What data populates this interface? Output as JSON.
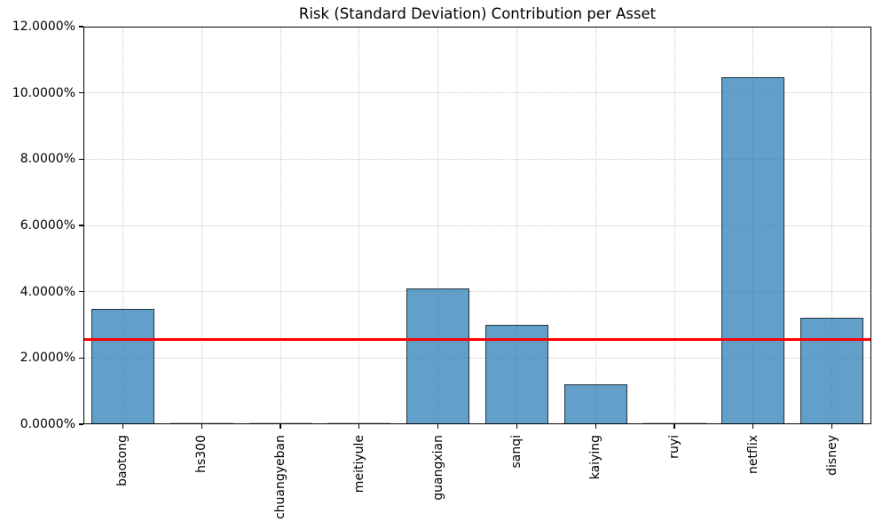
{
  "chart_data": {
    "type": "bar",
    "title": "Risk (Standard Deviation) Contribution per Asset",
    "xlabel": "",
    "ylabel": "",
    "categories": [
      "baotong",
      "hs300",
      "chuangyeban",
      "meitiyule",
      "guangxian",
      "sanqi",
      "kaiying",
      "ruyi",
      "netflix",
      "disney"
    ],
    "values": [
      3.47,
      0.0,
      0.0,
      0.0,
      4.11,
      3.0,
      1.2,
      0.0,
      10.46,
      3.22
    ],
    "value_unit": "%",
    "ylim": [
      0,
      12
    ],
    "ytick_step": 2,
    "ytick_labels": [
      "0.0000%",
      "2.0000%",
      "4.0000%",
      "6.0000%",
      "8.0000%",
      "10.0000%",
      "12.0000%"
    ],
    "x_tick_rotation": 90,
    "grid": true,
    "legend": "none",
    "mean_line": {
      "value": 2.55,
      "color": "#ff0000"
    },
    "colors": {
      "bar_fill": "rgba(31,119,180,0.7)",
      "bar_edge": "rgba(15,15,15,0.75)",
      "zero_bar": "#bdbdbd",
      "grid": "#c9c9c9",
      "spine": "#000000",
      "background": "#ffffff"
    }
  }
}
